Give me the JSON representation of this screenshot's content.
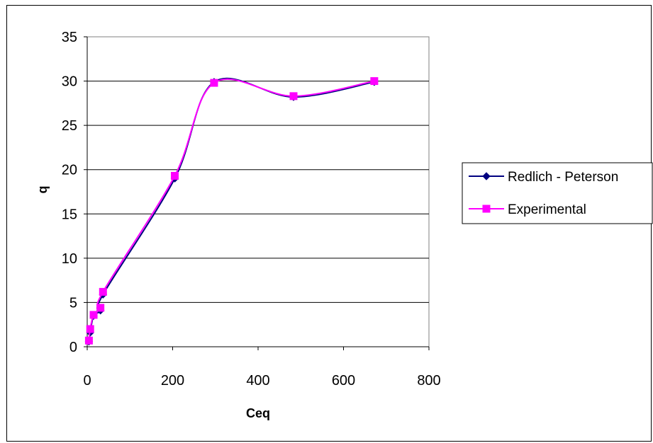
{
  "chart_data": {
    "type": "line",
    "xlabel": "Ceq",
    "ylabel": "q",
    "xlim": [
      0,
      800
    ],
    "ylim": [
      0,
      35
    ],
    "xticks": [
      0,
      200,
      400,
      600,
      800
    ],
    "yticks": [
      0,
      5,
      10,
      15,
      20,
      25,
      30,
      35
    ],
    "grid": "horizontal",
    "legend_position": "right",
    "series": [
      {
        "name": "Redlich - Peterson",
        "marker": "diamond",
        "color": "#000080",
        "x": [
          4,
          7,
          15,
          31,
          37,
          205,
          297,
          483,
          672
        ],
        "y": [
          0.6,
          1.6,
          3.5,
          4.1,
          5.9,
          19.0,
          29.9,
          28.2,
          29.9
        ]
      },
      {
        "name": "Experimental",
        "marker": "square",
        "color": "#ff00ff",
        "x": [
          4,
          7,
          15,
          31,
          37,
          205,
          297,
          483,
          672
        ],
        "y": [
          0.7,
          2.0,
          3.6,
          4.4,
          6.2,
          19.3,
          29.8,
          28.3,
          30.0
        ]
      }
    ]
  }
}
